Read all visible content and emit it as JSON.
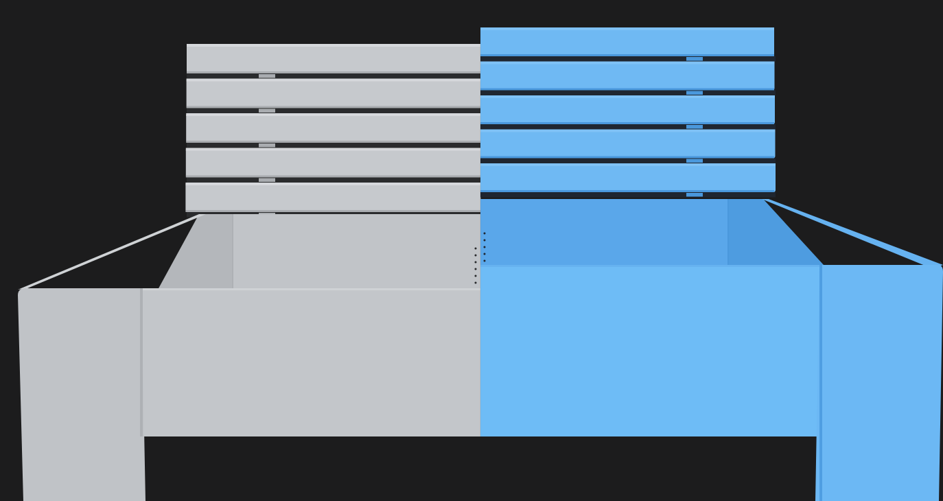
{
  "scene": {
    "subject": "bench-render-comparison",
    "background_color": "#1c1c1d",
    "halves": {
      "left": {
        "material": "untextured-grey",
        "colors": {
          "slat": "#c6c9cd",
          "slat_top": "#d6d8dc",
          "slat_edge": "#a9acb0",
          "gap": "#2a2b2d",
          "inner_back": "#c1c4c8",
          "inner_side": "#b4b7bb",
          "top_rail": "#cfd2d5",
          "front": "#c3c6ca",
          "front_shadow": "#b3b6ba",
          "post": "#c0c3c7",
          "post_edge": "#aeb1b5"
        }
      },
      "right": {
        "material": "blue-highlight",
        "colors": {
          "slat": "#6fb9f3",
          "slat_top": "#7fc2f6",
          "slat_edge": "#4a98dc",
          "gap": "#1f2630",
          "inner_back": "#5aa7ea",
          "inner_side": "#4e9ce0",
          "top_rail": "#66b2f0",
          "front": "#6ebcf6",
          "front_shadow": "#5aa9ea",
          "post": "#6cb8f4",
          "post_edge": "#4f9ee2"
        }
      }
    },
    "backrest_slat_count": 5
  }
}
